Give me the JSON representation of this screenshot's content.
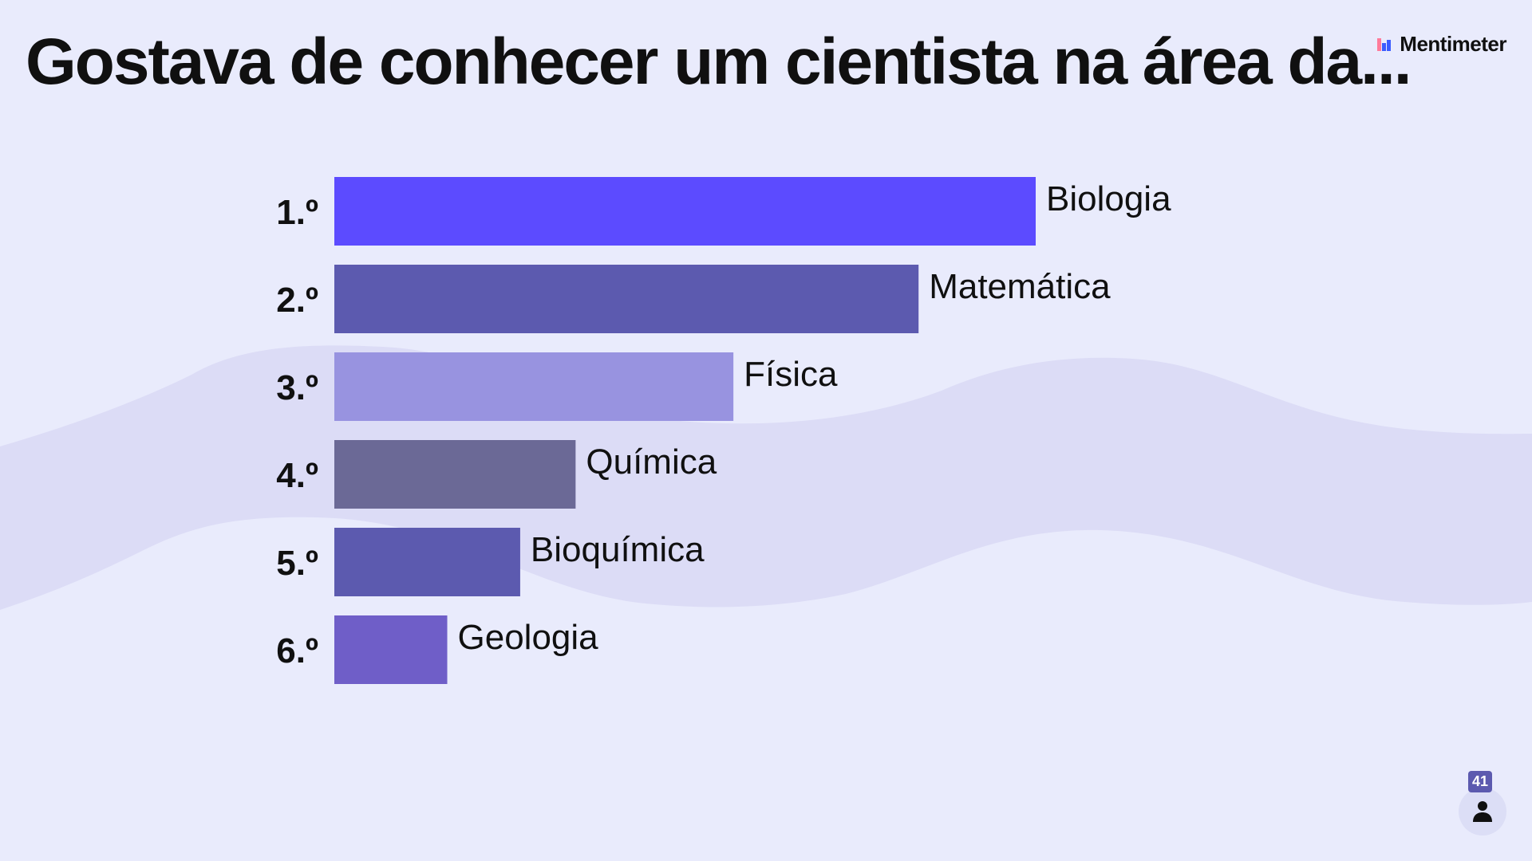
{
  "slide": {
    "title": "Gostava de conhecer um cientista na área da..."
  },
  "brand": {
    "name": "Mentimeter"
  },
  "participants": {
    "count": "41",
    "icon": "person-icon"
  },
  "chart_data": {
    "type": "bar",
    "orientation": "horizontal",
    "ranks": [
      "1.º",
      "2.º",
      "3.º",
      "4.º",
      "5.º",
      "6.º"
    ],
    "categories": [
      "Biologia",
      "Matemática",
      "Física",
      "Química",
      "Bioquímica",
      "Geologia"
    ],
    "values": [
      100,
      83.3,
      56.9,
      34.4,
      26.5,
      16.1
    ],
    "value_unit": "relative share of the largest bar (%)",
    "colors": [
      "#5c4bff",
      "#5c5aaf",
      "#9893e0",
      "#6b6996",
      "#5c5aaf",
      "#6f5ec8"
    ],
    "xlim": [
      0,
      100
    ]
  },
  "colors": {
    "background": "#e9ebfc",
    "wave": "#dcdcf6"
  }
}
